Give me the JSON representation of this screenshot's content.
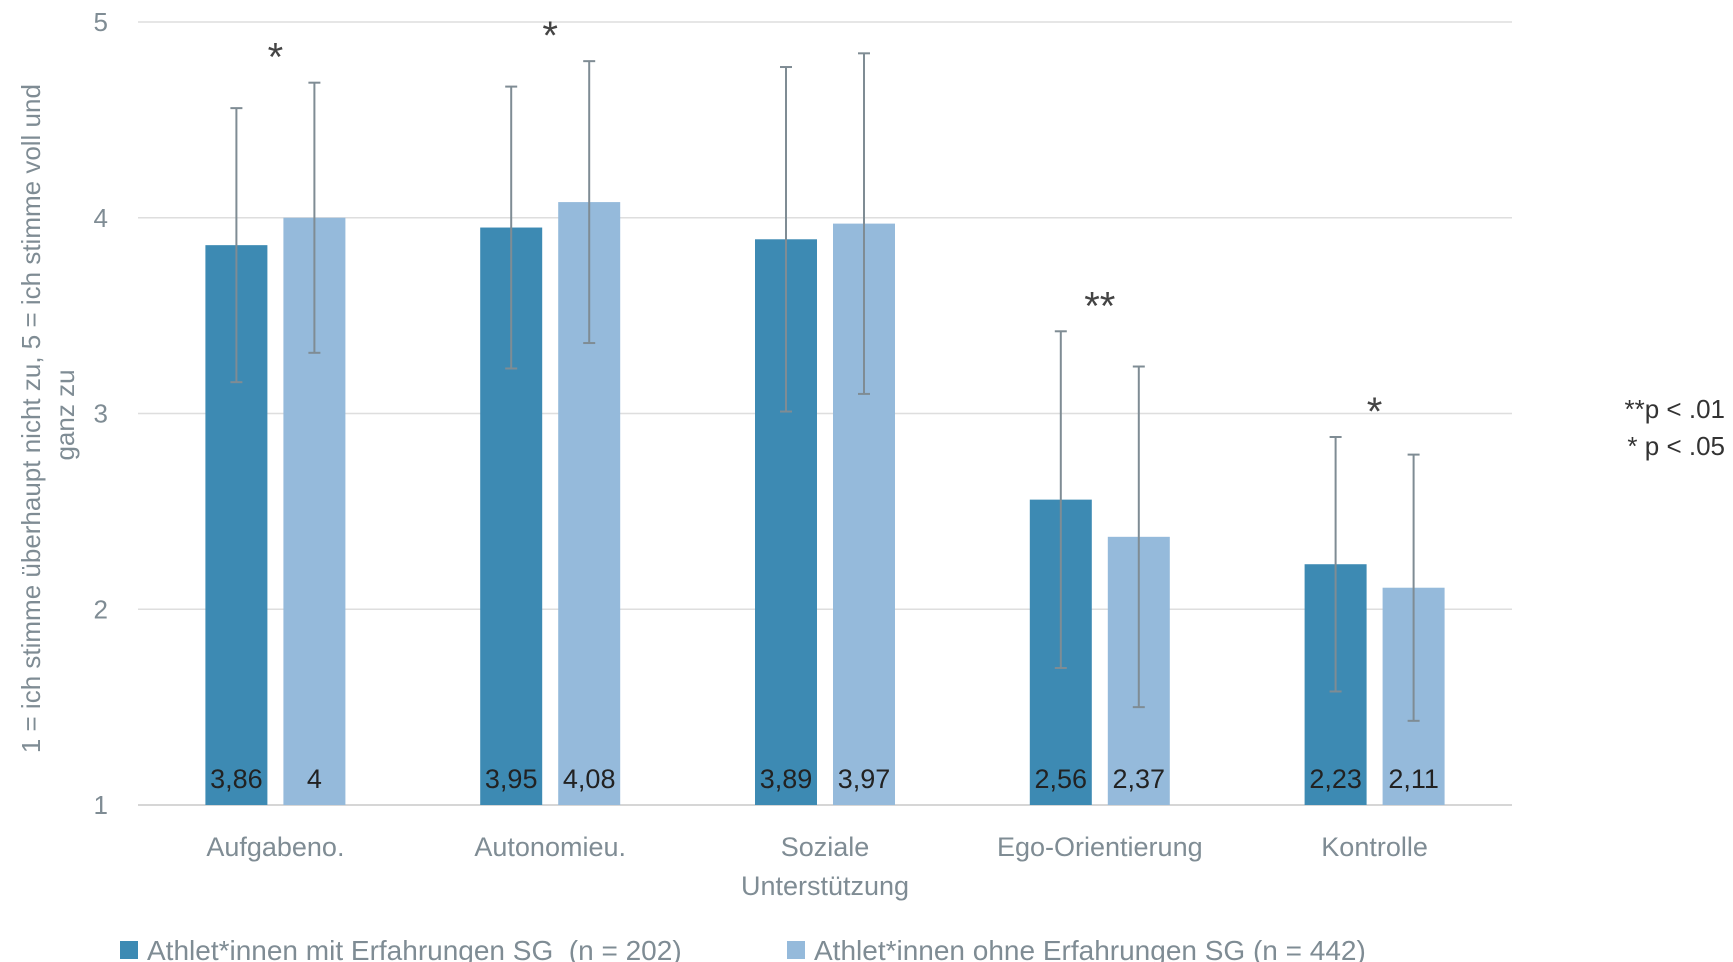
{
  "chart_data": {
    "type": "bar",
    "categories": [
      "Aufgabeno.",
      "Autonomieu.",
      "Soziale Unterstützung",
      "Ego-Orientierung",
      "Kontrolle"
    ],
    "category_lines": [
      [
        "Aufgabeno."
      ],
      [
        "Autonomieu."
      ],
      [
        "Soziale",
        "Unterstützung"
      ],
      [
        "Ego-Orientierung"
      ],
      [
        "Kontrolle"
      ]
    ],
    "series": [
      {
        "name": "Athlet*innen mit Erfahrungen SG  (n = 202)",
        "color": "#3d8ab3",
        "values": [
          3.86,
          3.95,
          3.89,
          2.56,
          2.23
        ],
        "labels": [
          "3,86",
          "3,95",
          "3,89",
          "2,56",
          "2,23"
        ],
        "error_low": [
          3.16,
          3.23,
          3.01,
          1.7,
          1.58
        ],
        "error_high": [
          4.56,
          4.67,
          4.77,
          3.42,
          2.88
        ]
      },
      {
        "name": "Athlet*innen ohne Erfahrungen SG (n = 442)",
        "color": "#95badb",
        "values": [
          4.0,
          4.08,
          3.97,
          2.37,
          2.11
        ],
        "labels": [
          "4",
          "4,08",
          "3,97",
          "2,37",
          "2,11"
        ],
        "error_low": [
          3.31,
          3.36,
          3.1,
          1.5,
          1.43
        ],
        "error_high": [
          4.69,
          4.8,
          4.84,
          3.24,
          2.79
        ]
      }
    ],
    "significance": [
      "*",
      "*",
      "",
      "**",
      "*"
    ],
    "ylabel_lines": [
      "1 = ich stimme überhaupt nicht zu, 5 = ich stimme voll und",
      "ganz zu"
    ],
    "ylim": [
      1,
      5
    ],
    "yticks": [
      1,
      2,
      3,
      4,
      5
    ],
    "grid": true,
    "legend_position": "bottom",
    "notes": [
      "**p < .01",
      "* p < .05"
    ]
  }
}
